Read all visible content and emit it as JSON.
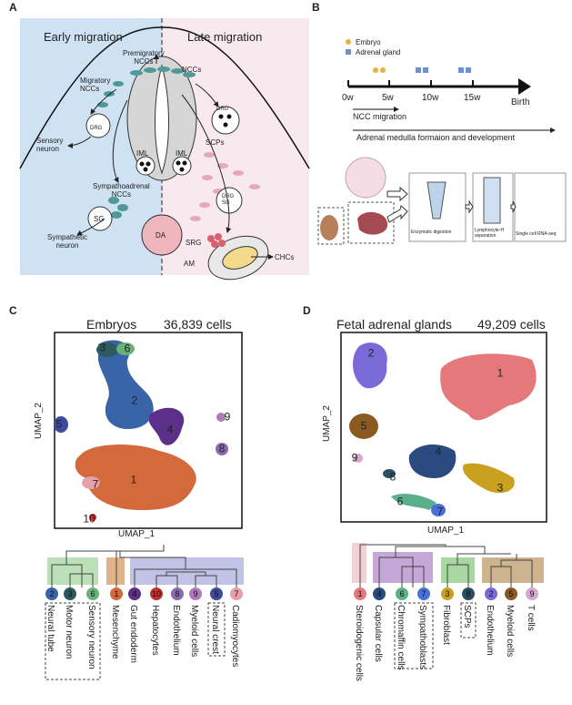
{
  "panels": {
    "a": {
      "label": "A",
      "left_title": "Early migration",
      "right_title": "Late migration",
      "labels": [
        "Premigratory\nNCCs",
        "NCCs",
        "Migratory\nNCCs",
        "DRG",
        "SCPs",
        "Sensory\nneuron",
        "DRG",
        "IML",
        "IML",
        "Sympathoadrenal\nNCCs",
        "SG",
        "DRG\nSG",
        "Sympathetic\nneuron",
        "DA",
        "SRG",
        "AM",
        "CHCs"
      ]
    },
    "b": {
      "label": "B",
      "legend": [
        "Embryo",
        "Adrenal gland"
      ],
      "timeline": [
        "0w",
        "5w",
        "10w",
        "15w",
        "Birth"
      ],
      "arrows": [
        "NCC migration",
        "Adrenal medulla formaion and development"
      ],
      "steps": [
        "Enzymatic digestion",
        "Lymphocyte-H\nseparation",
        "Single cell RNA-seq"
      ]
    },
    "c": {
      "label": "C",
      "title": "Embryos",
      "cells": "36,839 cells",
      "x_label": "UMAP_1",
      "y_label": "UMAP_2",
      "clusters": [
        "1",
        "2",
        "3",
        "4",
        "5",
        "6",
        "7",
        "8",
        "9",
        "10"
      ],
      "leaves": [
        "2",
        "3",
        "6",
        "1",
        "4",
        "10",
        "8",
        "9",
        "5",
        "7"
      ],
      "names": [
        "Neural tube",
        "Motor neuron",
        "Sensory neuron",
        "Mesenchyme",
        "Gut endoderm",
        "Hepatocytes",
        "Endothelium",
        "Myeloid cells",
        "Neural crest",
        "Cadiomyocytes"
      ]
    },
    "d": {
      "label": "D",
      "title": "Fetal adrenal glands",
      "cells": "49,209 cells",
      "x_label": "UMAP_1",
      "y_label": "UMAP_2",
      "clusters": [
        "1",
        "2",
        "3",
        "4",
        "5",
        "6",
        "7",
        "8",
        "9"
      ],
      "leaves": [
        "1",
        "4",
        "6",
        "7",
        "3",
        "8",
        "2",
        "5",
        "9"
      ],
      "names": [
        "Steroidogenic cells",
        "Capsular cells",
        "Chromaffin cells",
        "Sympathoblasts",
        "Fibroblast",
        "SCPs",
        "Endothelium",
        "Myeloid cells",
        "T cells"
      ]
    }
  }
}
